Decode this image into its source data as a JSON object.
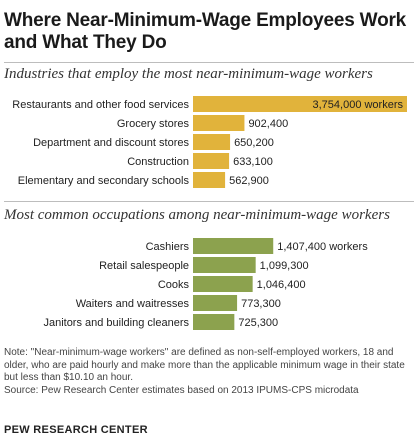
{
  "title": "Where Near-Minimum-Wage Employees Work and What They Do",
  "colors": {
    "industries_bar": "#E1B33B",
    "occupations_bar": "#8CA24E"
  },
  "chart_data": [
    {
      "type": "bar",
      "orientation": "horizontal",
      "title": "Industries that employ the most near-minimum-wage workers",
      "categories": [
        "Restaurants and other food services",
        "Grocery stores",
        "Department and discount stores",
        "Construction",
        "Elementary and secondary schools"
      ],
      "values": [
        3754000,
        902400,
        650200,
        633100,
        562900
      ],
      "value_labels": [
        "3,754,000 workers",
        "902,400",
        "650,200",
        "633,100",
        "562,900"
      ],
      "xlim": [
        0,
        3754000
      ]
    },
    {
      "type": "bar",
      "orientation": "horizontal",
      "title": "Most common occupations among near-minimum-wage workers",
      "categories": [
        "Cashiers",
        "Retail salespeople",
        "Cooks",
        "Waiters and waitresses",
        "Janitors and building cleaners"
      ],
      "values": [
        1407400,
        1099300,
        1046400,
        773300,
        725300
      ],
      "value_labels": [
        "1,407,400 workers",
        "1,099,300",
        "1,046,400",
        "773,300",
        "725,300"
      ],
      "xlim": [
        0,
        3754000
      ]
    }
  ],
  "note": "Note: \"Near-minimum-wage workers\" are defined as non-self-employed workers, 18 and older, who are paid hourly and make more than the applicable minimum wage in their state but less than $10.10 an hour.",
  "source": "Source: Pew Research Center estimates based on 2013 IPUMS-CPS microdata",
  "brand": "PEW RESEARCH CENTER"
}
